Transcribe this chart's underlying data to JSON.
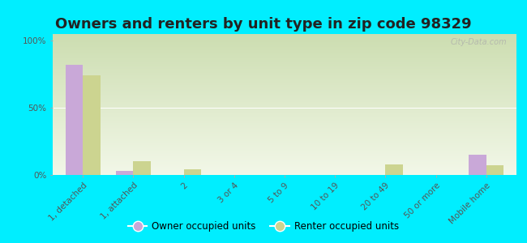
{
  "title": "Owners and renters by unit type in zip code 98329",
  "categories": [
    "1, detached",
    "1, attached",
    "2",
    "3 or 4",
    "5 to 9",
    "10 to 19",
    "20 to 49",
    "50 or more",
    "Mobile home"
  ],
  "owner_values": [
    82,
    3,
    0,
    0,
    0,
    0,
    0,
    0,
    15
  ],
  "renter_values": [
    74,
    10,
    4,
    0,
    0,
    0,
    8,
    0,
    7
  ],
  "owner_color": "#c9a8d8",
  "renter_color": "#ccd490",
  "background_outer": "#00eeff",
  "gradient_top": "#ccddb0",
  "gradient_bottom": "#f2f7e8",
  "ylabel_ticks": [
    "0%",
    "50%",
    "100%"
  ],
  "ytick_vals": [
    0,
    50,
    100
  ],
  "ylim": [
    0,
    105
  ],
  "legend_owner": "Owner occupied units",
  "legend_renter": "Renter occupied units",
  "watermark": "City-Data.com",
  "title_fontsize": 13,
  "tick_fontsize": 7.5,
  "bar_width": 0.35
}
